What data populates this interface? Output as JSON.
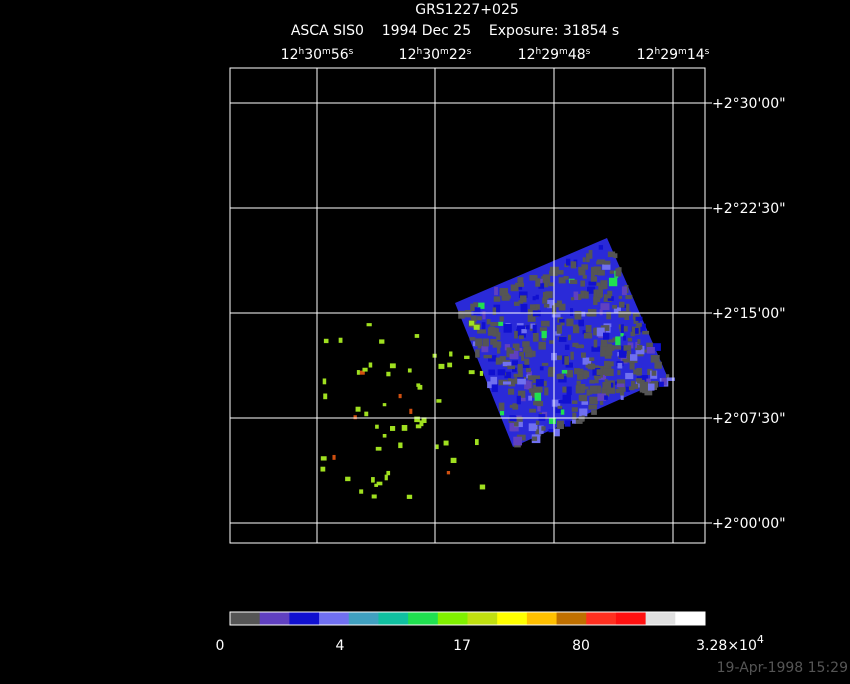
{
  "header": {
    "title": "GRS1227+025",
    "subtitle": "ASCA SIS0    1994 Dec 25    Exposure: 31854 s"
  },
  "ra_labels": [
    [
      "12",
      "h",
      "30",
      "m",
      "56",
      "s"
    ],
    [
      "12",
      "h",
      "30",
      "m",
      "22",
      "s"
    ],
    [
      "12",
      "h",
      "29",
      "m",
      "48",
      "s"
    ],
    [
      "12",
      "h",
      "29",
      "m",
      "14",
      "s"
    ]
  ],
  "dec_labels": [
    "+2°30'00\"",
    "+2°22'30\"",
    "+2°15'00\"",
    "+2°07'30\"",
    "+2°00'00\""
  ],
  "colorbar": {
    "colors": [
      "#555555",
      "#6040c0",
      "#1010d0",
      "#7070f0",
      "#40a0c0",
      "#10c0a0",
      "#20e050",
      "#80f000",
      "#c0e010",
      "#ffff00",
      "#ffc000",
      "#c07000",
      "#ff3020",
      "#ff1010",
      "#e0e0e0",
      "#ffffff"
    ],
    "labels": [
      [
        "0"
      ],
      [
        "4"
      ],
      [
        "17"
      ],
      [
        "80"
      ],
      [
        "3.28×10",
        "4"
      ]
    ]
  },
  "footer": {
    "timestamp": "19-Apr-1998 15:29"
  }
}
